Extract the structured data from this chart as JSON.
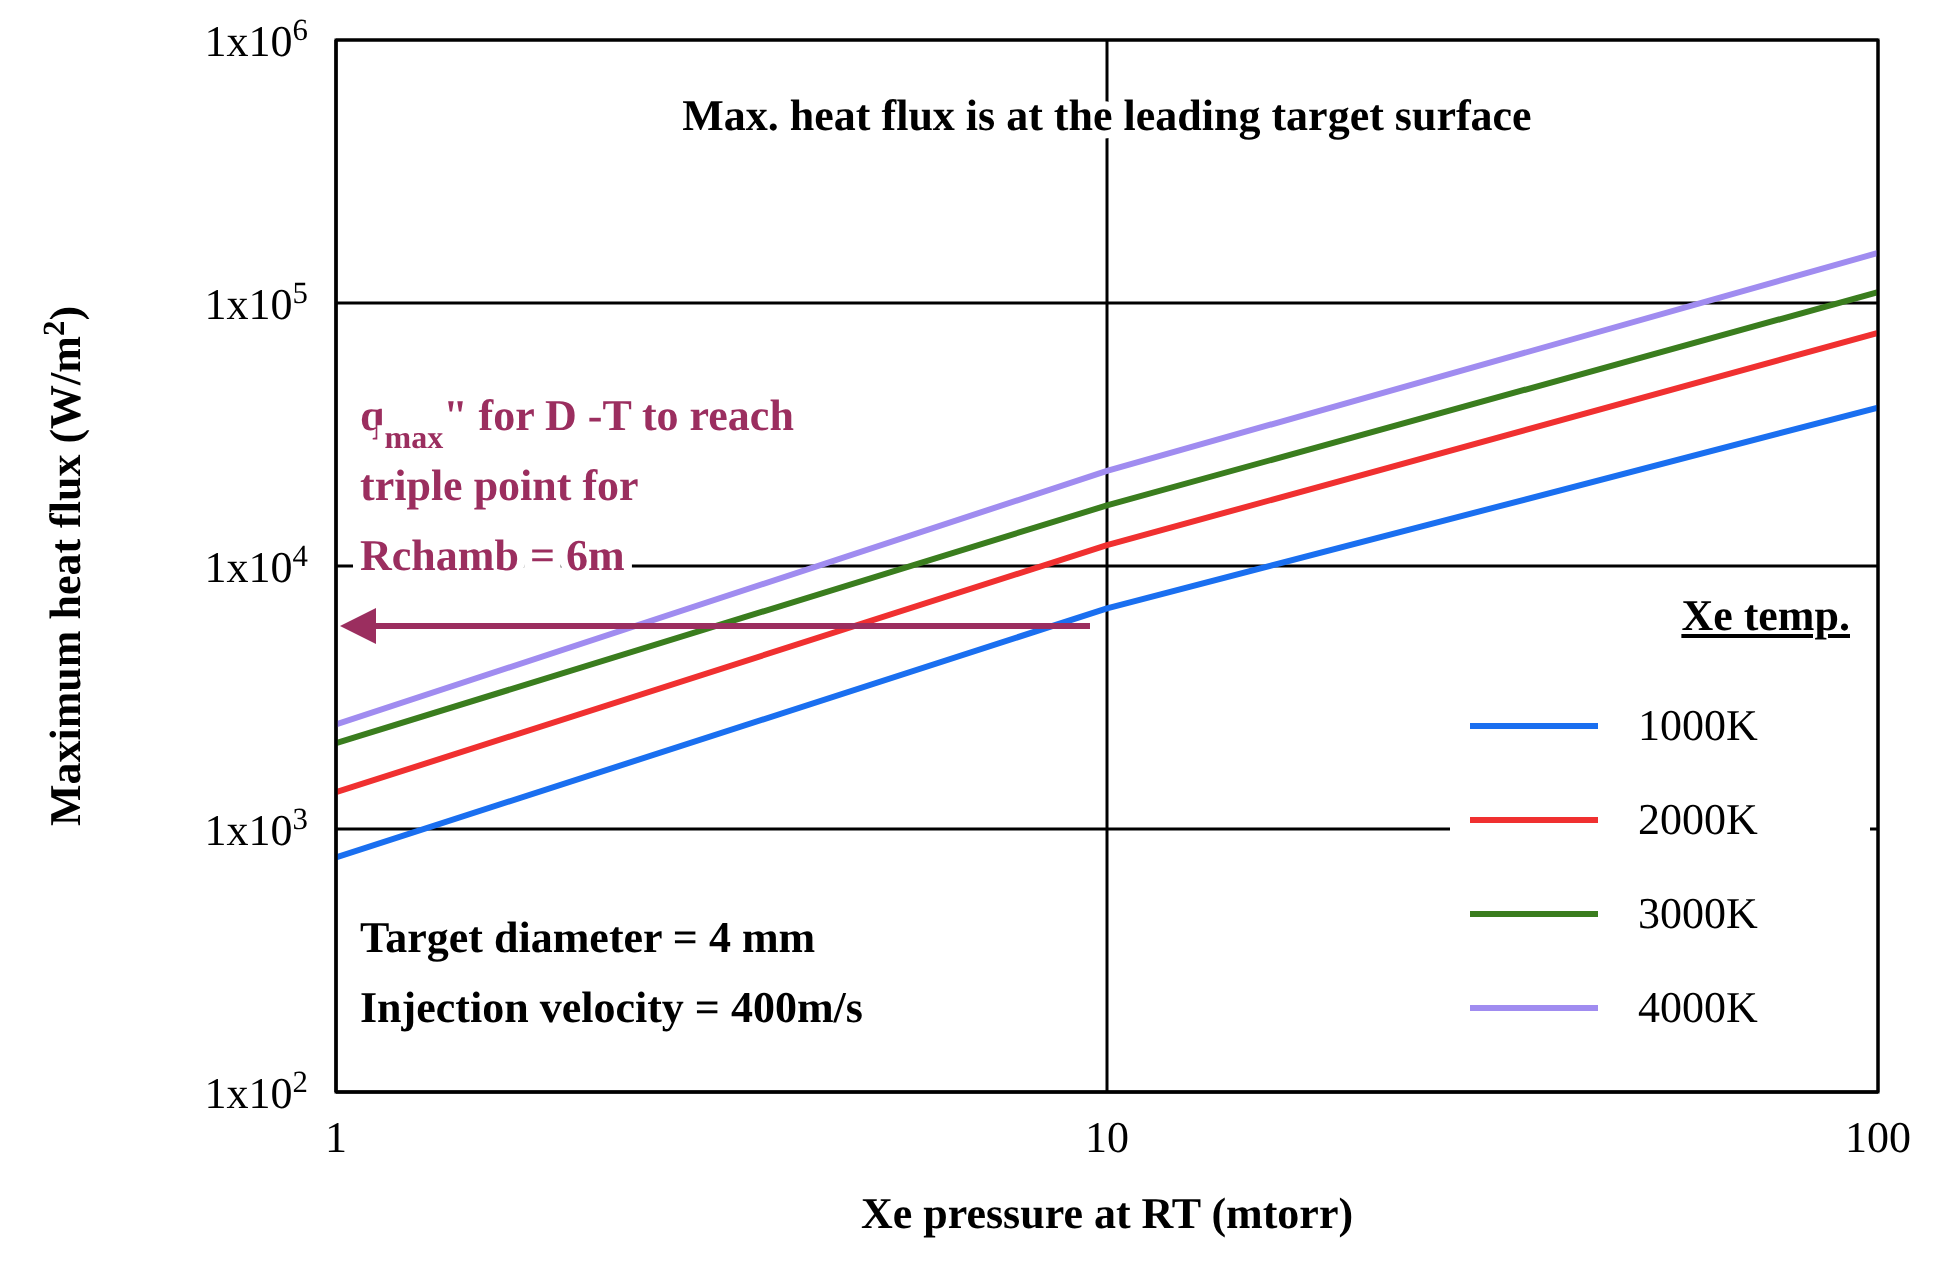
{
  "chart_data": {
    "type": "line",
    "xlabel": "Xe pressure at RT (mtorr)",
    "ylabel": "Maximum heat flux (W/m$^{2}$)",
    "legend_title": "Xe temp.",
    "log": "xy",
    "grid": true,
    "legend": "bottom right",
    "line_style": "solid",
    "xlim": [
      1,
      100
    ],
    "xticks": [
      1,
      10,
      100
    ],
    "ylim": [
      100,
      1000000
    ],
    "yticks": [
      {
        "value": 100,
        "label": "1x10$^{2}$"
      },
      {
        "value": 1000,
        "label": "1x10$^{3}$"
      },
      {
        "value": 10000,
        "label": "1x10$^{4}$"
      },
      {
        "value": 100000,
        "label": "1x10$^{5}$"
      },
      {
        "value": 1000000,
        "label": "1x10$^{6}$"
      }
    ],
    "series": [
      {
        "name": "1000K",
        "color": "#1a6ff0",
        "x": [
          1,
          10,
          100
        ],
        "values": [
          780,
          6900,
          40000
        ]
      },
      {
        "name": "2000K",
        "color": "#f03030",
        "x": [
          1,
          10,
          100
        ],
        "values": [
          1380,
          12000,
          77000
        ]
      },
      {
        "name": "3000K",
        "color": "#3a7d1e",
        "x": [
          1,
          10,
          100
        ],
        "values": [
          2120,
          17000,
          110000
        ]
      },
      {
        "name": "4000K",
        "color": "#a08cf0",
        "x": [
          1,
          10,
          100
        ],
        "values": [
          2500,
          23000,
          155000
        ]
      }
    ],
    "annotations": [
      "Max. heat flux is at the leading target surface",
      "Target diameter = 4 mm",
      "Injection velocity = 400m/s",
      "q$_{max}$\" for D -T to reach triple point for Rchamb = 6m"
    ]
  }
}
